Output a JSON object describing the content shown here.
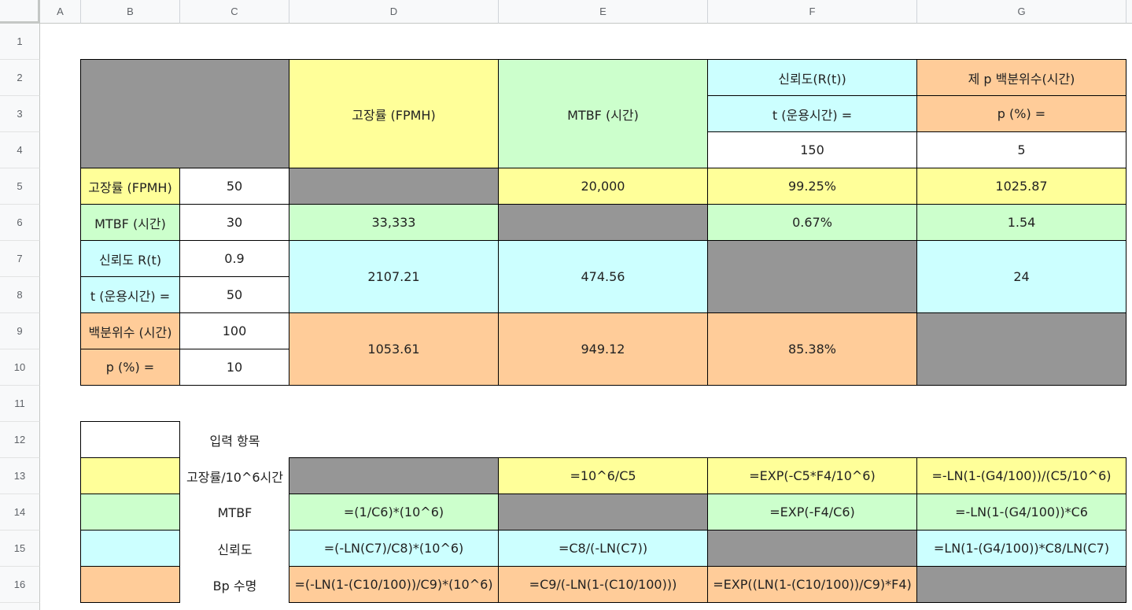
{
  "columns": [
    "A",
    "B",
    "C",
    "D",
    "E",
    "F",
    "G"
  ],
  "rows": [
    "1",
    "2",
    "3",
    "4",
    "5",
    "6",
    "7",
    "8",
    "9",
    "10",
    "11",
    "12",
    "13",
    "14",
    "15",
    "16"
  ],
  "colors": {
    "yellow": "#ffff99",
    "green": "#ccffcc",
    "cyan": "#ccffff",
    "orange": "#ffcc99",
    "gray": "#969696"
  },
  "header": {
    "fpmh": "고장률 (FPMH)",
    "mtbf": "MTBF (시간)",
    "reliability": "신뢰도(R(t))",
    "t_label": "t (운용시간) =",
    "t_value": "150",
    "percentile": "제 p 백분위수(시간)",
    "p_label": "p (%) =",
    "p_value": "5"
  },
  "inputs": {
    "fpmh_label": "고장률 (FPMH)",
    "fpmh_value": "50",
    "mtbf_label": "MTBF (시간)",
    "mtbf_value": "30",
    "rel_label": "신뢰도 R(t)",
    "rel_value": "0.9",
    "t_label": "t (운용시간) =",
    "t_value": "50",
    "pct_label": "백분위수 (시간)",
    "pct_value": "100",
    "p_label": "p (%) =",
    "p_value": "10"
  },
  "results": {
    "r5_mtbf": "20,000",
    "r5_rel": "99.25%",
    "r5_pct": "1025.87",
    "r6_fpmh": "33,333",
    "r6_rel": "0.67%",
    "r6_pct": "1.54",
    "r7_fpmh": "2107.21",
    "r7_mtbf": "474.56",
    "r7_pct": "24",
    "r9_fpmh": "1053.61",
    "r9_mtbf": "949.12",
    "r9_rel": "85.38%"
  },
  "legend": {
    "input_item": "입력 항목",
    "row13_label": "고장률/10^6시간",
    "row14_label": "MTBF",
    "row15_label": "신뢰도",
    "row16_label": "Bp 수명"
  },
  "formulas": {
    "e13": "=10^6/C5",
    "f13": "=EXP(-C5*F4/10^6)",
    "g13": "=-LN(1-(G4/100))/(C5/10^6)",
    "d14": "=(1/C6)*(10^6)",
    "f14": "=EXP(-F4/C6)",
    "g14": "=-LN(1-(G4/100))*C6",
    "d15": "=(-LN(C7)/C8)*(10^6)",
    "e15": "=C8/(-LN(C7))",
    "g15": "=LN(1-(G4/100))*C8/LN(C7)",
    "d16": "=(-LN(1-(C10/100))/C9)*(10^6)",
    "e16": "=C9/(-LN(1-(C10/100)))",
    "f16": "=EXP((LN(1-(C10/100))/C9)*F4)"
  }
}
